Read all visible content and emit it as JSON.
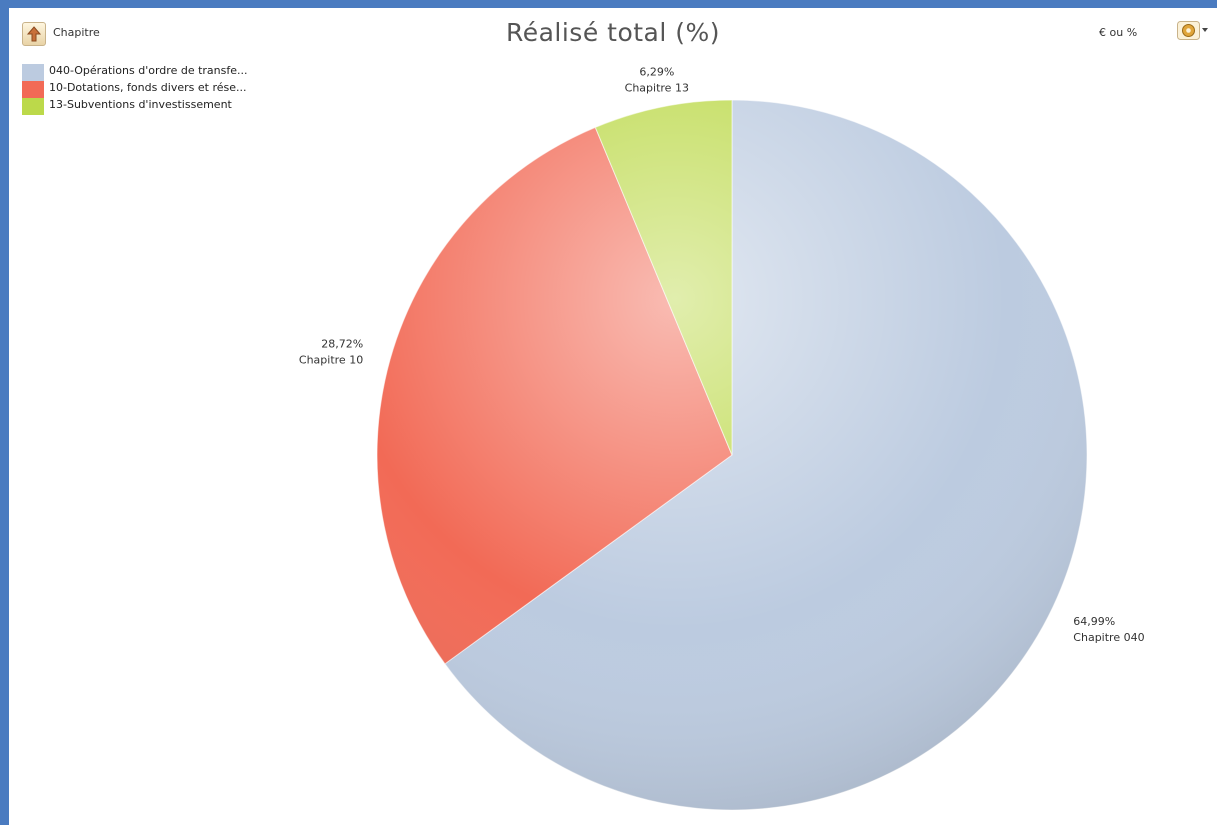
{
  "toolbar": {
    "up_icon": "up-arrow-icon",
    "level_label": "Chapitre",
    "toggle_label": "€ ou %",
    "options_icon": "gear-dropdown-icon"
  },
  "legend": [
    {
      "label": "040-Opérations d'ordre de transfe...",
      "color": "#bccbe0"
    },
    {
      "label": "10-Dotations, fonds divers et rése...",
      "color": "#f26a56"
    },
    {
      "label": "13-Subventions d'investissement",
      "color": "#bcd94a"
    }
  ],
  "chart_data": {
    "type": "pie",
    "title": "Réalisé total (%)",
    "slices": [
      {
        "name": "Chapitre 040",
        "value": 64.99,
        "label": "64,99%",
        "color": "#bccbe0"
      },
      {
        "name": "Chapitre 10",
        "value": 28.72,
        "label": "28,72%",
        "color": "#f26a56"
      },
      {
        "name": "Chapitre 13",
        "value": 6.29,
        "label": "6,29%",
        "color": "#bcd94a"
      }
    ]
  }
}
